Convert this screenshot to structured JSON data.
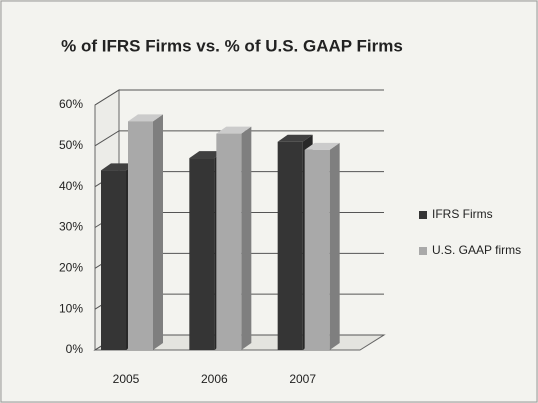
{
  "chart_data": {
    "type": "bar3d",
    "title": "% of IFRS Firms vs. % of U.S. GAAP Firms",
    "categories": [
      "2005",
      "2006",
      "2007"
    ],
    "series": [
      {
        "name": "IFRS Firms",
        "color": "#353535",
        "values": [
          44,
          47,
          51
        ]
      },
      {
        "name": "U.S. GAAP firms",
        "color": "#a9a9a9",
        "values": [
          56,
          53,
          49
        ]
      }
    ],
    "ylim": [
      0,
      60
    ],
    "yticks": [
      {
        "value": 0,
        "label": "0%"
      },
      {
        "value": 10,
        "label": "10%"
      },
      {
        "value": 20,
        "label": "20%"
      },
      {
        "value": 30,
        "label": "30%"
      },
      {
        "value": 40,
        "label": "40%"
      },
      {
        "value": 50,
        "label": "50%"
      },
      {
        "value": 60,
        "label": "60%"
      }
    ],
    "grid": true,
    "legend": "right"
  }
}
